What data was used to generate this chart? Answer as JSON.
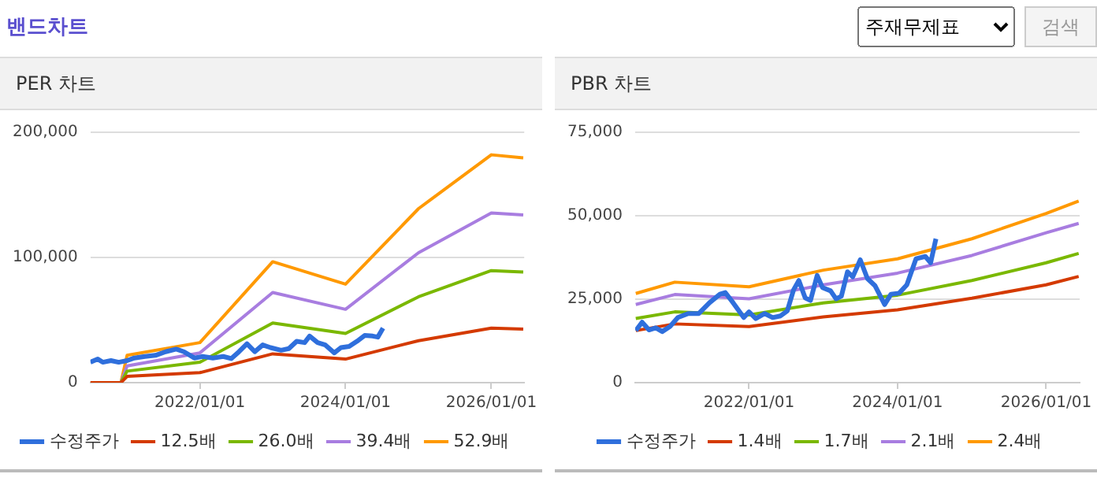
{
  "chart_data": [
    {
      "type": "other",
      "title": "밴드차트",
      "annotations": [
        "주재무제표",
        "검색"
      ]
    },
    {
      "type": "line",
      "title": "PER 차트",
      "legend": "bottom",
      "grid": "y",
      "marker": "none",
      "line_style": "solid",
      "xlim": [
        "2020-07-01",
        "2026-06-15"
      ],
      "xticks": [
        {
          "value": "2022-01-01",
          "label": "2022/01/01"
        },
        {
          "value": "2024-01-01",
          "label": "2024/01/01"
        },
        {
          "value": "2026-01-01",
          "label": "2026/01/01"
        }
      ],
      "ylim": [
        0,
        200000
      ],
      "yticks": [
        {
          "value": 0,
          "label": "0"
        },
        {
          "value": 100000,
          "label": "100,000"
        },
        {
          "value": 200000,
          "label": "200,000"
        }
      ],
      "series": [
        {
          "name": "수정주가",
          "color": "#2f6fdc",
          "x": [
            "2020-07-01",
            "2020-08-07",
            "2020-09-01",
            "2020-10-12",
            "2020-11-20",
            "2021-01-01",
            "2021-02-06",
            "2021-03-31",
            "2021-05-23",
            "2021-07-13",
            "2021-09-04",
            "2021-10-13",
            "2021-12-04",
            "2022-01-14",
            "2022-03-07",
            "2022-04-28",
            "2022-06-07",
            "2022-07-16",
            "2022-08-25",
            "2022-10-03",
            "2022-11-12",
            "2022-12-21",
            "2023-02-12",
            "2023-03-23",
            "2023-05-01",
            "2023-06-10",
            "2023-07-05",
            "2023-08-14",
            "2023-09-22",
            "2023-11-06",
            "2023-12-09",
            "2024-01-19",
            "2024-02-27",
            "2024-04-06",
            "2024-05-16",
            "2024-06-11",
            "2024-07-07"
          ],
          "values": [
            16300,
            18800,
            16300,
            17600,
            16300,
            17600,
            19700,
            20900,
            21800,
            24700,
            26800,
            24700,
            19700,
            20900,
            19700,
            20900,
            19200,
            24700,
            31000,
            24700,
            30100,
            28000,
            25900,
            27200,
            33000,
            32000,
            37200,
            32000,
            30100,
            23800,
            28000,
            28900,
            33000,
            37700,
            37200,
            36400,
            43500
          ]
        },
        {
          "name": "12.5배",
          "color": "#d43a00",
          "x": [
            "2020-07-01",
            "2020-12-01",
            "2021-01-01",
            "2022-01-01",
            "2023-01-01",
            "2024-01-01",
            "2025-01-01",
            "2026-01-01",
            "2026-06-10"
          ],
          "values": [
            0,
            0,
            5000,
            8000,
            23000,
            18800,
            33500,
            43500,
            42700
          ]
        },
        {
          "name": "26.0배",
          "color": "#7ab800",
          "x": [
            "2020-07-01",
            "2020-12-01",
            "2021-01-01",
            "2022-01-01",
            "2023-01-01",
            "2024-01-01",
            "2025-01-01",
            "2026-01-01",
            "2026-06-10"
          ],
          "values": [
            0,
            0,
            9200,
            16300,
            47700,
            39300,
            68600,
            89500,
            88300
          ]
        },
        {
          "name": "39.4배",
          "color": "#a87de0",
          "x": [
            "2020-07-01",
            "2020-12-01",
            "2021-01-01",
            "2022-01-01",
            "2023-01-01",
            "2024-01-01",
            "2025-01-01",
            "2026-01-01",
            "2026-06-10"
          ],
          "values": [
            0,
            0,
            13400,
            23800,
            72000,
            58600,
            103800,
            135600,
            134000
          ]
        },
        {
          "name": "52.9배",
          "color": "#ff9900",
          "x": [
            "2020-07-01",
            "2020-12-01",
            "2021-01-01",
            "2022-01-01",
            "2023-01-01",
            "2024-01-01",
            "2025-01-01",
            "2026-01-01",
            "2026-06-10"
          ],
          "values": [
            0,
            0,
            21800,
            32000,
            96600,
            78700,
            139000,
            182000,
            179500
          ]
        }
      ]
    },
    {
      "type": "line",
      "title": "PBR 차트",
      "legend": "bottom",
      "grid": "y",
      "marker": "none",
      "line_style": "solid",
      "xlim": [
        "2020-06-20",
        "2026-06-15"
      ],
      "xticks": [
        {
          "value": "2022-01-01",
          "label": "2022/01/01"
        },
        {
          "value": "2024-01-01",
          "label": "2024/01/01"
        },
        {
          "value": "2026-01-01",
          "label": "2026/01/01"
        }
      ],
      "ylim": [
        0,
        75000
      ],
      "yticks": [
        {
          "value": 0,
          "label": "0"
        },
        {
          "value": 25000,
          "label": "25,000"
        },
        {
          "value": 50000,
          "label": "50,000"
        },
        {
          "value": 75000,
          "label": "75,000"
        }
      ],
      "series": [
        {
          "name": "수정주가",
          "color": "#2f6fdc",
          "x": [
            "2020-06-23",
            "2020-07-24",
            "2020-08-27",
            "2020-09-29",
            "2020-10-31",
            "2020-12-08",
            "2021-01-16",
            "2021-03-08",
            "2021-04-29",
            "2021-06-20",
            "2021-08-11",
            "2021-09-06",
            "2021-10-15",
            "2021-12-06",
            "2022-01-01",
            "2022-02-03",
            "2022-03-19",
            "2022-04-27",
            "2022-06-05",
            "2022-07-08",
            "2022-08-08",
            "2022-09-03",
            "2022-10-04",
            "2022-10-30",
            "2022-12-02",
            "2022-12-28",
            "2023-02-06",
            "2023-03-05",
            "2023-03-31",
            "2023-04-30",
            "2023-05-26",
            "2023-07-02",
            "2023-08-06",
            "2023-09-13",
            "2023-10-30",
            "2023-11-30",
            "2024-01-09",
            "2024-02-16",
            "2024-04-01",
            "2024-05-17",
            "2024-06-12",
            "2024-07-08"
          ],
          "values": [
            15600,
            18100,
            15800,
            16400,
            15300,
            16800,
            19500,
            20700,
            20700,
            23900,
            26500,
            27000,
            23900,
            19500,
            21200,
            19200,
            20700,
            19500,
            20000,
            21500,
            27800,
            30600,
            25400,
            24600,
            32100,
            28500,
            27500,
            25100,
            25900,
            33200,
            31700,
            36800,
            31200,
            29000,
            23400,
            26500,
            26800,
            29300,
            37100,
            37800,
            35900,
            43100
          ]
        },
        {
          "name": "1.4배",
          "color": "#d43a00",
          "x": [
            "2020-06-23",
            "2021-01-01",
            "2022-01-01",
            "2023-01-01",
            "2024-01-01",
            "2025-01-01",
            "2026-01-01",
            "2026-06-10"
          ],
          "values": [
            15600,
            17600,
            16800,
            19700,
            21800,
            25300,
            29300,
            31800
          ]
        },
        {
          "name": "1.7배",
          "color": "#7ab800",
          "x": [
            "2020-06-23",
            "2021-01-01",
            "2022-01-01",
            "2023-01-01",
            "2024-01-01",
            "2025-01-01",
            "2026-01-01",
            "2026-06-10"
          ],
          "values": [
            19200,
            21200,
            20300,
            23900,
            26200,
            30600,
            35900,
            38700
          ]
        },
        {
          "name": "2.1배",
          "color": "#a87de0",
          "x": [
            "2020-06-23",
            "2021-01-01",
            "2022-01-01",
            "2023-01-01",
            "2024-01-01",
            "2025-01-01",
            "2026-01-01",
            "2026-06-10"
          ],
          "values": [
            23400,
            26400,
            25100,
            29300,
            32800,
            38100,
            44900,
            47700
          ]
        },
        {
          "name": "2.4배",
          "color": "#ff9900",
          "x": [
            "2020-06-23",
            "2021-01-01",
            "2022-01-01",
            "2023-01-01",
            "2024-01-01",
            "2025-01-01",
            "2026-01-01",
            "2026-06-10"
          ],
          "values": [
            26700,
            30100,
            28700,
            33700,
            37100,
            43100,
            50700,
            54400
          ]
        }
      ]
    }
  ]
}
